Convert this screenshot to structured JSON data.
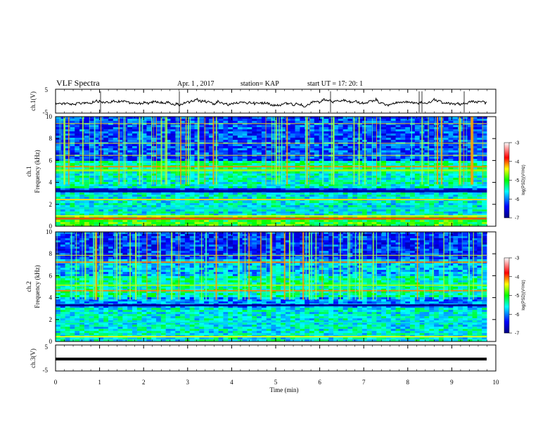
{
  "header": {
    "title": "VLF Spectra",
    "date": "Apr. 1  , 2017",
    "station": "station= KAP",
    "start": "start  UT =   17: 20: 1"
  },
  "chart_data": [
    {
      "name": "ch1-waveform",
      "type": "line",
      "ylabel": "ch.1(V)",
      "ylim": [
        -5,
        5
      ],
      "yticks": [
        "5",
        "-5"
      ],
      "xlim": [
        0,
        10
      ],
      "series": [
        {
          "color": "#000000",
          "description_values": "noisy trace between about -1.5 and 1.5 V"
        }
      ]
    },
    {
      "name": "ch1-spectrogram",
      "type": "heatmap",
      "ylabel": "ch.1\nFrequency (kHz)",
      "ylim": [
        0,
        10
      ],
      "yticks": [
        "0",
        "2",
        "4",
        "6",
        "8",
        "10"
      ],
      "xlim": [
        0,
        10
      ],
      "colorbar": {
        "min": -7,
        "max": -3,
        "ticks": [
          "-3",
          "-4",
          "-5",
          "-6",
          "-7"
        ],
        "label": "log(PSD)(V²/Hz)"
      }
    },
    {
      "name": "ch2-spectrogram",
      "type": "heatmap",
      "ylabel": "ch.2\nFrequency (kHz)",
      "ylim": [
        0,
        10
      ],
      "yticks": [
        "0",
        "2",
        "4",
        "6",
        "8",
        "10"
      ],
      "xlim": [
        0,
        10
      ],
      "colorbar": {
        "min": -7,
        "max": -3,
        "ticks": [
          "-3",
          "-4",
          "-5",
          "-6",
          "-7"
        ],
        "label": "log(PSD)(V²/Hz)"
      }
    },
    {
      "name": "ch3-waveform",
      "type": "line",
      "ylabel": "ch.3(V)",
      "ylim": [
        -5,
        5
      ],
      "yticks": [
        "5",
        "-5"
      ],
      "xlim": [
        0,
        10
      ],
      "series": [
        {
          "color": "#000000",
          "y_constant": 0
        }
      ]
    }
  ],
  "xaxis": {
    "label": "Time  (min)",
    "ticks": [
      "0",
      "1",
      "2",
      "3",
      "4",
      "5",
      "6",
      "7",
      "8",
      "9",
      "10"
    ]
  },
  "colors": {
    "line": "#000000",
    "background": "#ffffff"
  }
}
